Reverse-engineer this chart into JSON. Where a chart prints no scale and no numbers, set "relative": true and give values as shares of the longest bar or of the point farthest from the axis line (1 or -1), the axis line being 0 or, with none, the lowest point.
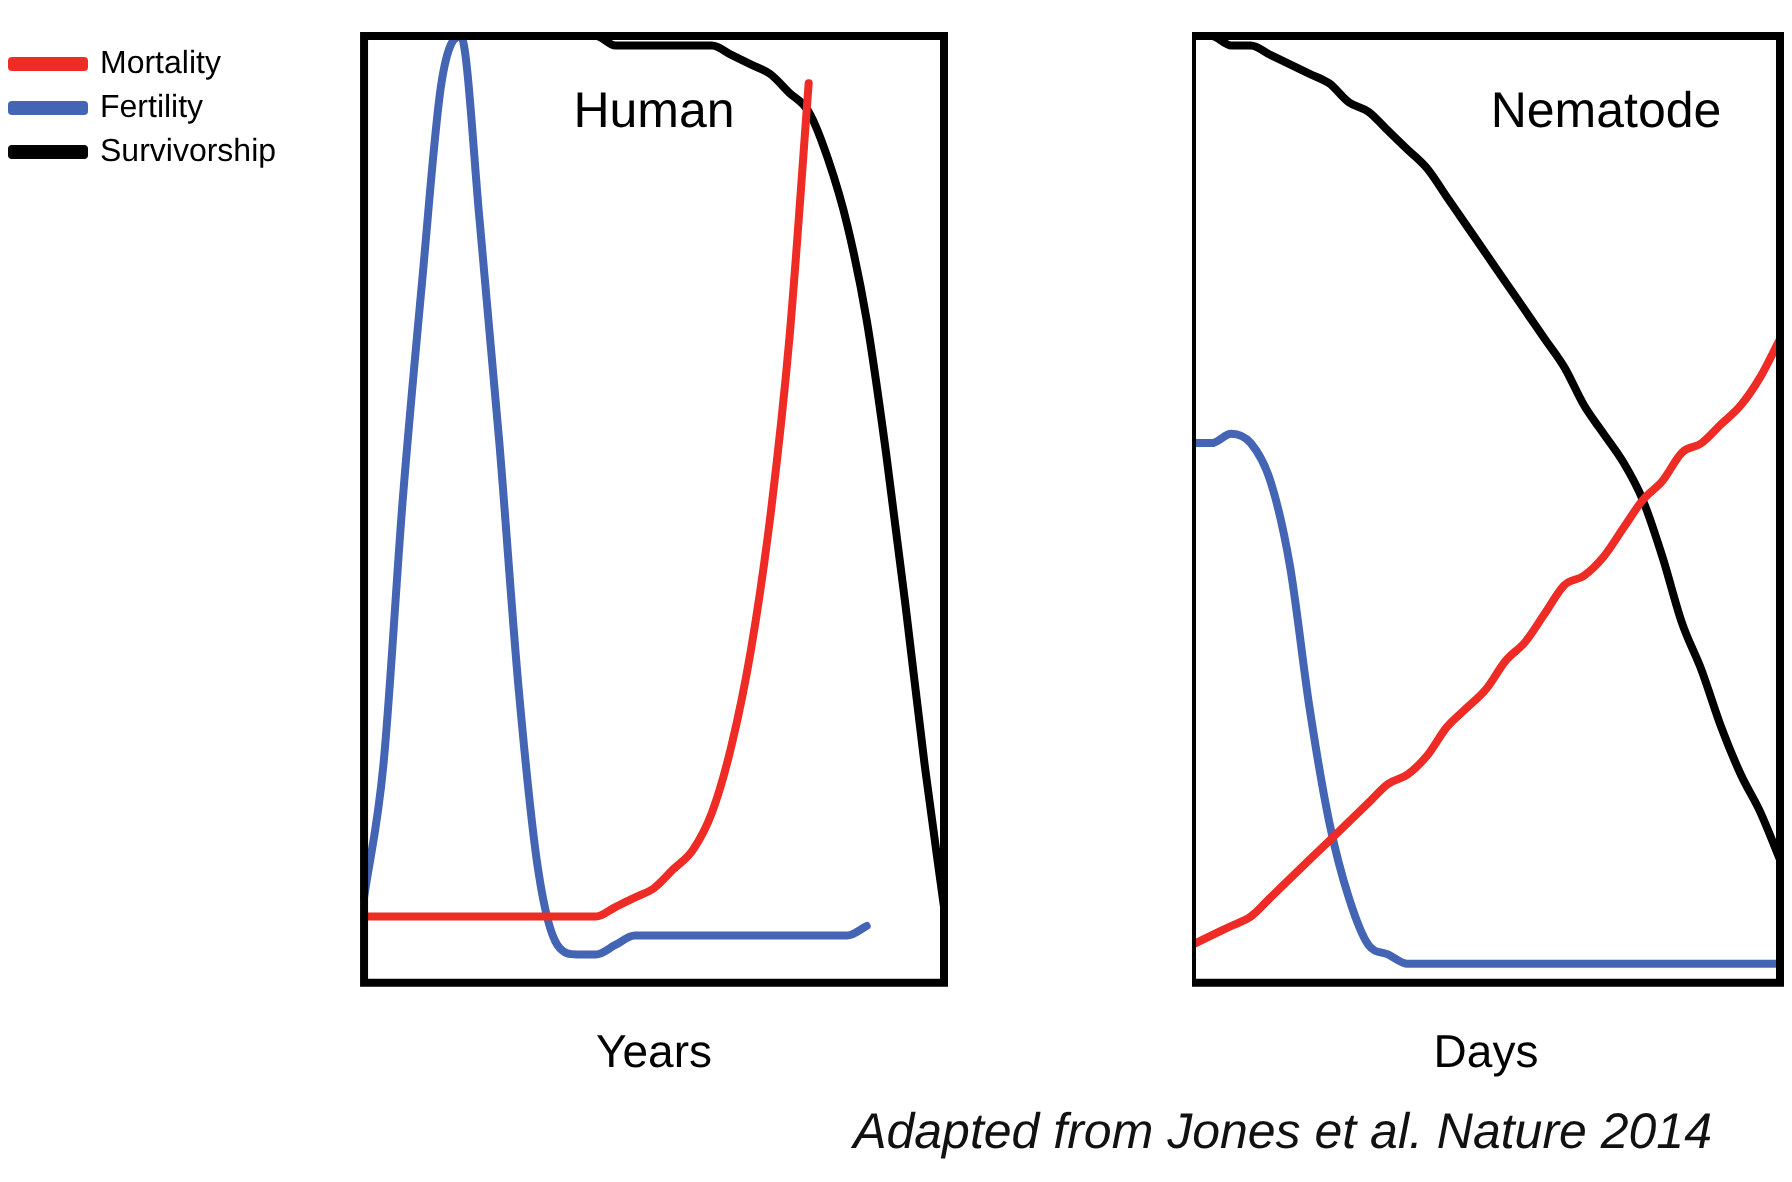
{
  "chart_data": [
    {
      "type": "line",
      "title": "Human",
      "xlabel": "Years",
      "relative": true,
      "legend": "top left",
      "marker": "none",
      "categories": [
        null,
        null,
        null,
        null,
        null,
        null,
        null,
        null,
        null,
        null,
        null,
        null,
        null,
        null,
        null,
        null,
        null,
        null,
        null,
        null,
        null,
        null,
        null,
        null,
        null,
        null,
        null,
        null,
        null,
        null,
        null
      ],
      "series": [
        {
          "name": "Mortality",
          "color": "#ee2b24",
          "values": [
            0.07,
            0.07,
            0.07,
            0.07,
            0.07,
            0.07,
            0.07,
            0.07,
            0.07,
            0.07,
            0.07,
            0.07,
            0.07,
            0.08,
            0.09,
            0.1,
            0.12,
            0.14,
            0.18,
            0.25,
            0.35,
            0.49,
            0.68,
            0.95,
            null,
            null,
            null,
            null,
            null,
            null,
            null
          ]
        },
        {
          "name": "Fertility",
          "color": "#4464b4",
          "values": [
            0.09,
            0.23,
            0.51,
            0.74,
            0.95,
            1,
            0.8,
            0.57,
            0.31,
            0.12,
            0.04,
            0.03,
            0.03,
            0.04,
            0.05,
            0.05,
            0.05,
            0.05,
            0.05,
            0.05,
            0.05,
            0.05,
            0.05,
            0.05,
            0.05,
            0.05,
            0.06,
            null,
            null,
            null,
            null
          ]
        },
        {
          "name": "Survivorship",
          "color": "#000000",
          "values": [
            1,
            1,
            1,
            1,
            1,
            1,
            1,
            1,
            1,
            1,
            1,
            1,
            1,
            0.99,
            0.99,
            0.99,
            0.99,
            0.99,
            0.99,
            0.98,
            0.97,
            0.96,
            0.94,
            0.92,
            0.87,
            0.8,
            0.7,
            0.56,
            0.4,
            0.23,
            0.08
          ]
        }
      ]
    },
    {
      "type": "line",
      "title": "Nematode",
      "xlabel": "Days",
      "relative": true,
      "marker": "none",
      "annotations": [
        "Adapted from Jones et al. Nature 2014"
      ],
      "categories": [
        null,
        null,
        null,
        null,
        null,
        null,
        null,
        null,
        null,
        null,
        null,
        null,
        null,
        null,
        null,
        null,
        null,
        null,
        null,
        null,
        null,
        null,
        null,
        null,
        null,
        null,
        null,
        null,
        null,
        null,
        null
      ],
      "series": [
        {
          "color": "#ee2b24",
          "values": [
            0.04,
            0.05,
            0.06,
            0.07,
            0.09,
            0.11,
            0.13,
            0.15,
            0.17,
            0.19,
            0.21,
            0.22,
            0.24,
            0.27,
            0.29,
            0.31,
            0.34,
            0.36,
            0.39,
            0.42,
            0.43,
            0.45,
            0.48,
            0.51,
            0.53,
            0.56,
            0.57,
            0.59,
            0.61,
            0.64,
            0.68
          ]
        },
        {
          "color": "#4464b4",
          "values": [
            0.57,
            0.57,
            0.58,
            0.57,
            0.53,
            0.44,
            0.29,
            0.17,
            0.09,
            0.04,
            0.03,
            0.02,
            0.02,
            0.02,
            0.02,
            0.02,
            0.02,
            0.02,
            0.02,
            0.02,
            0.02,
            0.02,
            0.02,
            0.02,
            0.02,
            0.02,
            0.02,
            0.02,
            0.02,
            0.02,
            0.02
          ]
        },
        {
          "color": "#000000",
          "values": [
            1,
            1,
            0.99,
            0.99,
            0.98,
            0.97,
            0.96,
            0.95,
            0.93,
            0.92,
            0.9,
            0.88,
            0.86,
            0.83,
            0.8,
            0.77,
            0.74,
            0.71,
            0.68,
            0.65,
            0.61,
            0.58,
            0.55,
            0.51,
            0.45,
            0.38,
            0.33,
            0.27,
            0.22,
            0.18,
            0.13
          ]
        }
      ]
    }
  ]
}
